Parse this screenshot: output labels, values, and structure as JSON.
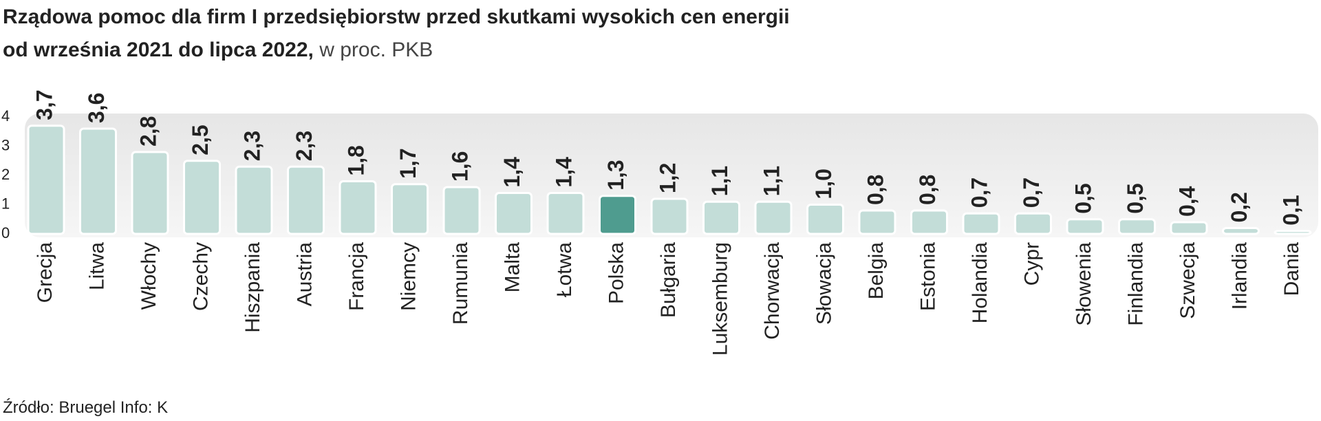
{
  "chart_data": {
    "type": "bar",
    "title": [
      "Rządowa pomoc dla firm I przedsiębiorstw przed skutkami wysokich cen energii",
      "od września 2021 do lipca 2022,"
    ],
    "subtitle": "w proc. PKB",
    "source": "Źródło: Bruegel  Info: K",
    "categories": [
      "Grecja",
      "Litwa",
      "Włochy",
      "Czechy",
      "Hiszpania",
      "Austria",
      "Francja",
      "Niemcy",
      "Rumunia",
      "Malta",
      "Łotwa",
      "Polska",
      "Bułgaria",
      "Luksemburg",
      "Chorwacja",
      "Słowacja",
      "Belgia",
      "Estonia",
      "Holandia",
      "Cypr",
      "Słowenia",
      "Finlandia",
      "Szwecja",
      "Irlandia",
      "Dania"
    ],
    "values": [
      3.7,
      3.6,
      2.8,
      2.5,
      2.3,
      2.3,
      1.8,
      1.7,
      1.6,
      1.4,
      1.4,
      1.3,
      1.2,
      1.1,
      1.1,
      1.0,
      0.8,
      0.8,
      0.7,
      0.7,
      0.5,
      0.5,
      0.4,
      0.2,
      0.1
    ],
    "value_labels": [
      "3,7",
      "3,6",
      "2,8",
      "2,5",
      "2,3",
      "2,3",
      "1,8",
      "1,7",
      "1,6",
      "1,4",
      "1,4",
      "1,3",
      "1,2",
      "1,1",
      "1,1",
      "1,0",
      "0,8",
      "0,8",
      "0,7",
      "0,7",
      "0,5",
      "0,5",
      "0,4",
      "0,2",
      "0,1"
    ],
    "colors": [
      "#c3ddd8",
      "#c3ddd8",
      "#c3ddd8",
      "#c3ddd8",
      "#c3ddd8",
      "#c3ddd8",
      "#c3ddd8",
      "#c3ddd8",
      "#c3ddd8",
      "#c3ddd8",
      "#c3ddd8",
      "#4f9c8f",
      "#c3ddd8",
      "#c3ddd8",
      "#c3ddd8",
      "#c3ddd8",
      "#c3ddd8",
      "#c3ddd8",
      "#c3ddd8",
      "#c3ddd8",
      "#c3ddd8",
      "#c3ddd8",
      "#c3ddd8",
      "#c3ddd8",
      "#c3ddd8"
    ],
    "ylim": [
      0,
      4
    ],
    "yticks": [
      0,
      1,
      2,
      3,
      4
    ]
  }
}
